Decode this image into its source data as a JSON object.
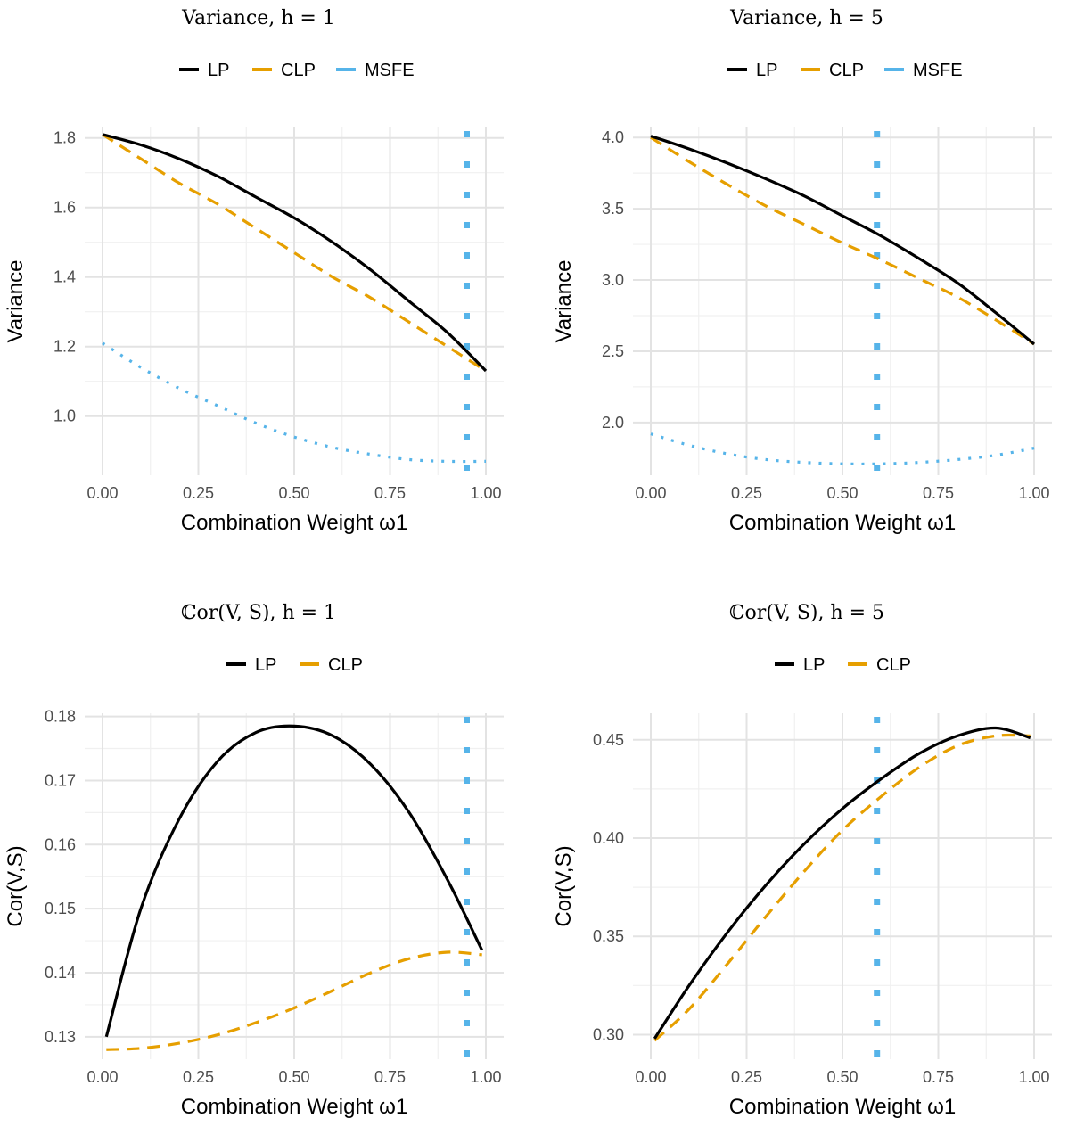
{
  "legend_colors": {
    "LP": "#000000",
    "CLP": "#E69F00",
    "MSFE": "#56B4E9"
  },
  "chart_data": [
    {
      "type": "line",
      "title": "Variance, h = 1",
      "xlabel": "Combination Weight ω1",
      "ylabel": "Variance",
      "legend": [
        "LP",
        "CLP",
        "MSFE"
      ],
      "legend_position": "top",
      "grid": true,
      "xlim": [
        0.0,
        1.0
      ],
      "ylim": [
        0.83,
        1.83
      ],
      "xticks": [
        "0.00",
        "0.25",
        "0.50",
        "0.75",
        "1.00"
      ],
      "yticks": [
        "1.0",
        "1.2",
        "1.4",
        "1.6",
        "1.8"
      ],
      "vline": 0.95,
      "series": [
        {
          "name": "LP",
          "style": "solid",
          "x": [
            0.0,
            0.1,
            0.2,
            0.3,
            0.4,
            0.5,
            0.6,
            0.7,
            0.8,
            0.9,
            1.0
          ],
          "values": [
            1.81,
            1.78,
            1.74,
            1.69,
            1.63,
            1.57,
            1.5,
            1.42,
            1.33,
            1.24,
            1.13
          ]
        },
        {
          "name": "CLP",
          "style": "dashed",
          "x": [
            0.0,
            0.1,
            0.2,
            0.3,
            0.4,
            0.5,
            0.6,
            0.7,
            0.8,
            0.9,
            1.0
          ],
          "values": [
            1.81,
            1.74,
            1.67,
            1.61,
            1.54,
            1.47,
            1.4,
            1.34,
            1.27,
            1.2,
            1.13
          ]
        },
        {
          "name": "MSFE",
          "style": "dotted",
          "x": [
            0.0,
            0.1,
            0.2,
            0.3,
            0.4,
            0.5,
            0.6,
            0.7,
            0.8,
            0.9,
            1.0
          ],
          "values": [
            1.21,
            1.14,
            1.08,
            1.03,
            0.98,
            0.94,
            0.91,
            0.89,
            0.875,
            0.87,
            0.87
          ]
        }
      ]
    },
    {
      "type": "line",
      "title": "Variance, h = 5",
      "xlabel": "Combination Weight ω1",
      "ylabel": "Variance",
      "legend": [
        "LP",
        "CLP",
        "MSFE"
      ],
      "legend_position": "top",
      "grid": true,
      "xlim": [
        0.0,
        1.0
      ],
      "ylim": [
        1.63,
        4.07
      ],
      "xticks": [
        "0.00",
        "0.25",
        "0.50",
        "0.75",
        "1.00"
      ],
      "yticks": [
        "2.0",
        "2.5",
        "3.0",
        "3.5",
        "4.0"
      ],
      "vline": 0.59,
      "series": [
        {
          "name": "LP",
          "style": "solid",
          "x": [
            0.0,
            0.1,
            0.2,
            0.3,
            0.4,
            0.5,
            0.6,
            0.7,
            0.8,
            0.9,
            1.0
          ],
          "values": [
            4.01,
            3.92,
            3.82,
            3.71,
            3.59,
            3.45,
            3.31,
            3.15,
            2.98,
            2.77,
            2.55
          ]
        },
        {
          "name": "CLP",
          "style": "dashed",
          "x": [
            0.0,
            0.1,
            0.2,
            0.3,
            0.4,
            0.5,
            0.6,
            0.7,
            0.8,
            0.9,
            1.0
          ],
          "values": [
            4.0,
            3.83,
            3.67,
            3.52,
            3.39,
            3.26,
            3.14,
            3.01,
            2.88,
            2.72,
            2.55
          ]
        },
        {
          "name": "MSFE",
          "style": "dotted",
          "x": [
            0.0,
            0.1,
            0.2,
            0.3,
            0.4,
            0.5,
            0.6,
            0.7,
            0.8,
            0.9,
            1.0
          ],
          "values": [
            1.92,
            1.84,
            1.78,
            1.74,
            1.72,
            1.71,
            1.71,
            1.72,
            1.74,
            1.77,
            1.82
          ]
        }
      ]
    },
    {
      "type": "line",
      "title": "ℂor(V, S), h = 1",
      "xlabel": "Combination Weight ω1",
      "ylabel": "Cor(V,S)",
      "legend": [
        "LP",
        "CLP"
      ],
      "legend_position": "top",
      "grid": true,
      "xlim": [
        0.0,
        1.0
      ],
      "ylim": [
        0.1265,
        0.1805
      ],
      "xticks": [
        "0.00",
        "0.25",
        "0.50",
        "0.75",
        "1.00"
      ],
      "yticks": [
        "0.13",
        "0.14",
        "0.15",
        "0.16",
        "0.17",
        "0.18"
      ],
      "vline": 0.95,
      "series": [
        {
          "name": "LP",
          "style": "solid",
          "x": [
            0.01,
            0.1,
            0.2,
            0.3,
            0.4,
            0.5,
            0.6,
            0.7,
            0.8,
            0.9,
            0.99
          ],
          "values": [
            0.13,
            0.15,
            0.164,
            0.173,
            0.1775,
            0.1785,
            0.177,
            0.1725,
            0.165,
            0.1545,
            0.1435
          ]
        },
        {
          "name": "CLP",
          "style": "dashed",
          "x": [
            0.01,
            0.1,
            0.2,
            0.3,
            0.4,
            0.5,
            0.6,
            0.7,
            0.8,
            0.9,
            0.99
          ],
          "values": [
            0.128,
            0.1282,
            0.129,
            0.1303,
            0.1322,
            0.1345,
            0.1372,
            0.14,
            0.1422,
            0.1432,
            0.1428
          ]
        }
      ]
    },
    {
      "type": "line",
      "title": "ℂor(V, S), h = 5",
      "xlabel": "Combination Weight ω1",
      "ylabel": "Cor(V,S)",
      "legend": [
        "LP",
        "CLP"
      ],
      "legend_position": "top",
      "grid": true,
      "xlim": [
        0.0,
        1.0
      ],
      "ylim": [
        0.2875,
        0.4635
      ],
      "xticks": [
        "0.00",
        "0.25",
        "0.50",
        "0.75",
        "1.00"
      ],
      "yticks": [
        "0.30",
        "0.35",
        "0.40",
        "0.45"
      ],
      "vline": 0.59,
      "series": [
        {
          "name": "LP",
          "style": "solid",
          "x": [
            0.01,
            0.1,
            0.2,
            0.3,
            0.4,
            0.5,
            0.6,
            0.7,
            0.8,
            0.9,
            0.99
          ],
          "values": [
            0.298,
            0.325,
            0.352,
            0.376,
            0.397,
            0.415,
            0.43,
            0.443,
            0.452,
            0.456,
            0.451
          ]
        },
        {
          "name": "CLP",
          "style": "dashed",
          "x": [
            0.01,
            0.1,
            0.2,
            0.3,
            0.4,
            0.5,
            0.6,
            0.7,
            0.8,
            0.9,
            0.99
          ],
          "values": [
            0.297,
            0.313,
            0.336,
            0.36,
            0.383,
            0.404,
            0.421,
            0.436,
            0.447,
            0.452,
            0.452
          ]
        }
      ]
    }
  ]
}
